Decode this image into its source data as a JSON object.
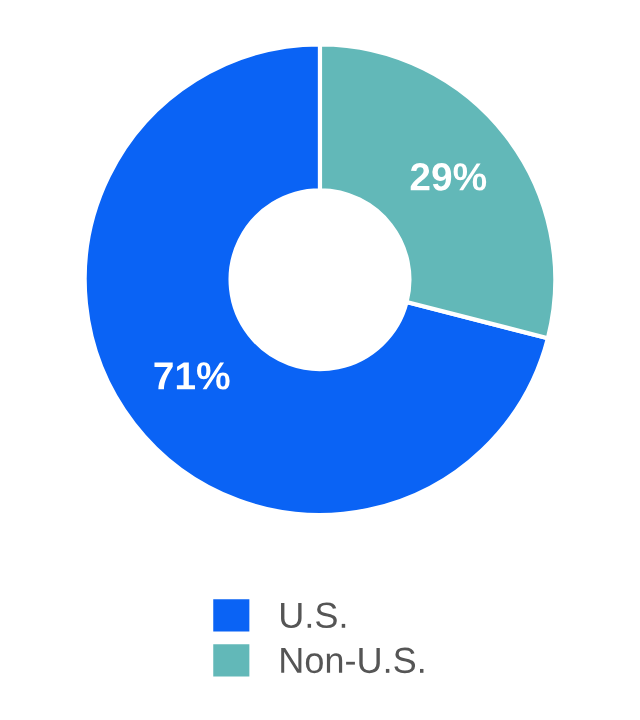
{
  "chart_data": {
    "type": "donut",
    "categories": [
      "U.S.",
      "Non-U.S."
    ],
    "values": [
      71,
      29
    ],
    "colors": [
      "#0a63f5",
      "#62b8b8"
    ],
    "value_labels": [
      "71%",
      "29%"
    ],
    "legend": "bottom"
  }
}
